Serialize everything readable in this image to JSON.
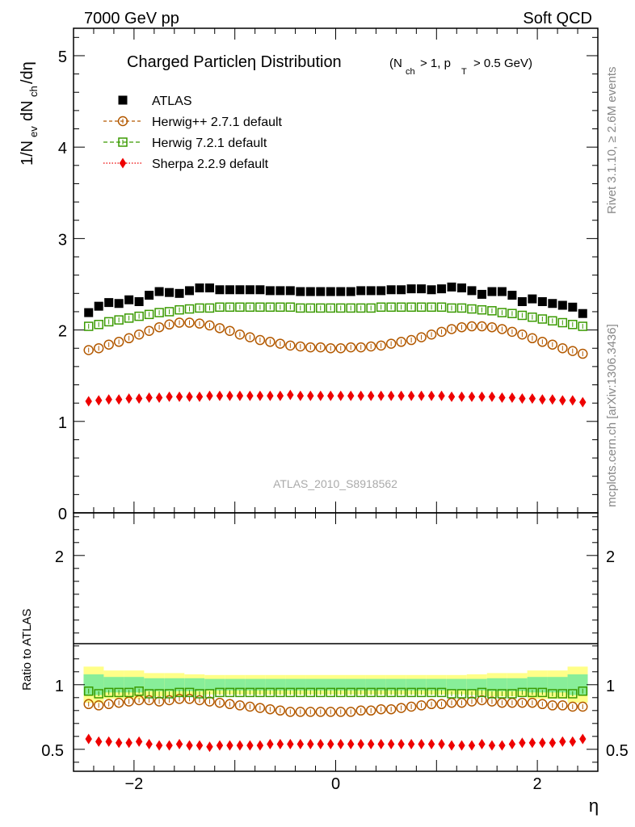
{
  "header": {
    "left": "7000 GeV pp",
    "right": "Soft QCD"
  },
  "side_labels": {
    "rivet": "Rivet 3.1.10, ≥ 2.6M events",
    "mcplots": "mcplots.cern.ch [arXiv:1306.3436]"
  },
  "watermark": "ATLAS_2010_S8918562",
  "title": {
    "main": "Charged Particleη Distribution",
    "cuts": "(N_ch > 1, p_T > 0.5 GeV)"
  },
  "axes": {
    "ylabel_top": "1/N_ev dN_ch/dη",
    "ylabel_bottom": "Ratio to ATLAS",
    "xlabel": "η"
  },
  "colors": {
    "atlas": "#000000",
    "herwigpp": "#b35900",
    "herwig7": "#3a9a00",
    "sherpa": "#ee0000",
    "band_inner": "#88ee99",
    "band_outer": "#ffff88"
  },
  "chart_data": [
    {
      "type": "scatter",
      "panel": "main",
      "title": "Charged Particleη Distribution",
      "xlabel": "η",
      "ylabel": "1/N_ev dN_ch/dη",
      "xlim": [
        -2.6,
        2.6
      ],
      "ylim": [
        0,
        5.3
      ],
      "xticks": [
        -2,
        0,
        2
      ],
      "yticks": [
        0,
        1,
        2,
        3,
        4,
        5
      ],
      "legend_position": "top-left",
      "x": [
        -2.45,
        -2.35,
        -2.25,
        -2.15,
        -2.05,
        -1.95,
        -1.85,
        -1.75,
        -1.65,
        -1.55,
        -1.45,
        -1.35,
        -1.25,
        -1.15,
        -1.05,
        -0.95,
        -0.85,
        -0.75,
        -0.65,
        -0.55,
        -0.45,
        -0.35,
        -0.25,
        -0.15,
        -0.05,
        0.05,
        0.15,
        0.25,
        0.35,
        0.45,
        0.55,
        0.65,
        0.75,
        0.85,
        0.95,
        1.05,
        1.15,
        1.25,
        1.35,
        1.45,
        1.55,
        1.65,
        1.75,
        1.85,
        1.95,
        2.05,
        2.15,
        2.25,
        2.35,
        2.45
      ],
      "series": [
        {
          "name": "ATLAS",
          "marker": "square-filled",
          "values": [
            2.19,
            2.26,
            2.3,
            2.29,
            2.33,
            2.31,
            2.38,
            2.42,
            2.41,
            2.4,
            2.43,
            2.46,
            2.46,
            2.44,
            2.44,
            2.44,
            2.44,
            2.44,
            2.43,
            2.43,
            2.43,
            2.42,
            2.42,
            2.42,
            2.42,
            2.42,
            2.42,
            2.43,
            2.43,
            2.43,
            2.44,
            2.44,
            2.45,
            2.45,
            2.44,
            2.45,
            2.47,
            2.46,
            2.43,
            2.39,
            2.42,
            2.42,
            2.38,
            2.31,
            2.34,
            2.31,
            2.29,
            2.27,
            2.25,
            2.18
          ]
        },
        {
          "name": "Herwig++ 2.7.1 default",
          "marker": "circle-open",
          "values": [
            1.78,
            1.8,
            1.84,
            1.87,
            1.91,
            1.95,
            1.99,
            2.03,
            2.06,
            2.08,
            2.08,
            2.07,
            2.05,
            2.02,
            1.99,
            1.95,
            1.92,
            1.89,
            1.87,
            1.85,
            1.83,
            1.82,
            1.81,
            1.81,
            1.8,
            1.8,
            1.81,
            1.81,
            1.82,
            1.83,
            1.85,
            1.87,
            1.89,
            1.92,
            1.95,
            1.98,
            2.01,
            2.03,
            2.04,
            2.04,
            2.03,
            2.01,
            1.98,
            1.95,
            1.91,
            1.87,
            1.84,
            1.8,
            1.77,
            1.74
          ]
        },
        {
          "name": "Herwig 7.2.1 default",
          "marker": "square-open",
          "values": [
            2.04,
            2.06,
            2.09,
            2.11,
            2.13,
            2.15,
            2.17,
            2.19,
            2.2,
            2.22,
            2.23,
            2.24,
            2.24,
            2.25,
            2.25,
            2.25,
            2.25,
            2.25,
            2.25,
            2.25,
            2.25,
            2.24,
            2.24,
            2.24,
            2.24,
            2.24,
            2.24,
            2.24,
            2.24,
            2.25,
            2.25,
            2.25,
            2.25,
            2.25,
            2.25,
            2.25,
            2.24,
            2.24,
            2.23,
            2.22,
            2.21,
            2.19,
            2.18,
            2.16,
            2.14,
            2.12,
            2.1,
            2.08,
            2.06,
            2.04
          ]
        },
        {
          "name": "Sherpa 2.2.9 default",
          "marker": "diamond-filled",
          "values": [
            1.22,
            1.23,
            1.24,
            1.24,
            1.25,
            1.25,
            1.26,
            1.26,
            1.27,
            1.27,
            1.27,
            1.27,
            1.28,
            1.28,
            1.28,
            1.28,
            1.28,
            1.28,
            1.28,
            1.28,
            1.29,
            1.28,
            1.28,
            1.28,
            1.28,
            1.28,
            1.28,
            1.28,
            1.28,
            1.28,
            1.28,
            1.28,
            1.28,
            1.28,
            1.28,
            1.28,
            1.27,
            1.27,
            1.27,
            1.27,
            1.27,
            1.26,
            1.26,
            1.25,
            1.25,
            1.24,
            1.24,
            1.23,
            1.23,
            1.21
          ]
        }
      ]
    },
    {
      "type": "scatter",
      "panel": "ratio",
      "ylabel": "Ratio to ATLAS",
      "xlabel": "η",
      "xlim": [
        -2.6,
        2.6
      ],
      "ylim": [
        0.33,
        2.33
      ],
      "xticks": [
        -2,
        0,
        2
      ],
      "yticks": [
        0.5,
        1,
        2
      ],
      "x": [
        -2.45,
        -2.35,
        -2.25,
        -2.15,
        -2.05,
        -1.95,
        -1.85,
        -1.75,
        -1.65,
        -1.55,
        -1.45,
        -1.35,
        -1.25,
        -1.15,
        -1.05,
        -0.95,
        -0.85,
        -0.75,
        -0.65,
        -0.55,
        -0.45,
        -0.35,
        -0.25,
        -0.15,
        -0.05,
        0.05,
        0.15,
        0.25,
        0.35,
        0.45,
        0.55,
        0.65,
        0.75,
        0.85,
        0.95,
        1.05,
        1.15,
        1.25,
        1.35,
        1.45,
        1.55,
        1.65,
        1.75,
        1.85,
        1.95,
        2.05,
        2.15,
        2.25,
        2.35,
        2.45
      ],
      "band": {
        "edges": [
          -2.5,
          -2.3,
          -2.1,
          -1.9,
          -1.7,
          -1.5,
          -1.3,
          -1.1,
          -0.9,
          -0.7,
          -0.5,
          -0.3,
          -0.1,
          0.1,
          0.3,
          0.5,
          0.7,
          0.9,
          1.1,
          1.3,
          1.5,
          1.7,
          1.9,
          2.1,
          2.3,
          2.5
        ],
        "inner": [
          0.08,
          0.06,
          0.06,
          0.05,
          0.05,
          0.05,
          0.045,
          0.045,
          0.045,
          0.045,
          0.045,
          0.045,
          0.045,
          0.045,
          0.045,
          0.045,
          0.045,
          0.045,
          0.045,
          0.045,
          0.05,
          0.05,
          0.06,
          0.06,
          0.08
        ],
        "outer": [
          0.14,
          0.11,
          0.11,
          0.09,
          0.09,
          0.08,
          0.075,
          0.075,
          0.075,
          0.075,
          0.075,
          0.075,
          0.075,
          0.075,
          0.075,
          0.075,
          0.075,
          0.075,
          0.075,
          0.08,
          0.09,
          0.09,
          0.11,
          0.11,
          0.14
        ]
      },
      "series": [
        {
          "name": "Herwig++ 2.7.1 default",
          "marker": "circle-open",
          "values": [
            0.85,
            0.84,
            0.85,
            0.86,
            0.87,
            0.88,
            0.88,
            0.87,
            0.88,
            0.89,
            0.89,
            0.88,
            0.87,
            0.86,
            0.85,
            0.84,
            0.83,
            0.82,
            0.81,
            0.8,
            0.79,
            0.79,
            0.79,
            0.79,
            0.79,
            0.79,
            0.79,
            0.8,
            0.8,
            0.81,
            0.81,
            0.82,
            0.83,
            0.84,
            0.85,
            0.85,
            0.86,
            0.86,
            0.87,
            0.88,
            0.87,
            0.86,
            0.86,
            0.86,
            0.86,
            0.85,
            0.84,
            0.84,
            0.83,
            0.83
          ]
        },
        {
          "name": "Herwig 7.2.1 default",
          "marker": "square-open",
          "values": [
            0.95,
            0.93,
            0.94,
            0.94,
            0.94,
            0.95,
            0.93,
            0.93,
            0.93,
            0.94,
            0.94,
            0.93,
            0.93,
            0.94,
            0.94,
            0.94,
            0.94,
            0.94,
            0.94,
            0.94,
            0.94,
            0.94,
            0.94,
            0.94,
            0.94,
            0.94,
            0.94,
            0.94,
            0.94,
            0.94,
            0.94,
            0.94,
            0.94,
            0.94,
            0.94,
            0.94,
            0.93,
            0.93,
            0.93,
            0.94,
            0.93,
            0.93,
            0.93,
            0.94,
            0.94,
            0.94,
            0.93,
            0.93,
            0.93,
            0.95
          ]
        },
        {
          "name": "Sherpa 2.2.9 default",
          "marker": "diamond-filled",
          "values": [
            0.58,
            0.56,
            0.56,
            0.55,
            0.55,
            0.56,
            0.54,
            0.53,
            0.53,
            0.54,
            0.53,
            0.53,
            0.52,
            0.53,
            0.53,
            0.53,
            0.53,
            0.53,
            0.54,
            0.54,
            0.54,
            0.54,
            0.54,
            0.54,
            0.54,
            0.54,
            0.54,
            0.54,
            0.54,
            0.54,
            0.54,
            0.54,
            0.54,
            0.54,
            0.54,
            0.54,
            0.53,
            0.53,
            0.53,
            0.54,
            0.53,
            0.53,
            0.54,
            0.55,
            0.55,
            0.55,
            0.55,
            0.56,
            0.56,
            0.58
          ]
        }
      ]
    }
  ]
}
